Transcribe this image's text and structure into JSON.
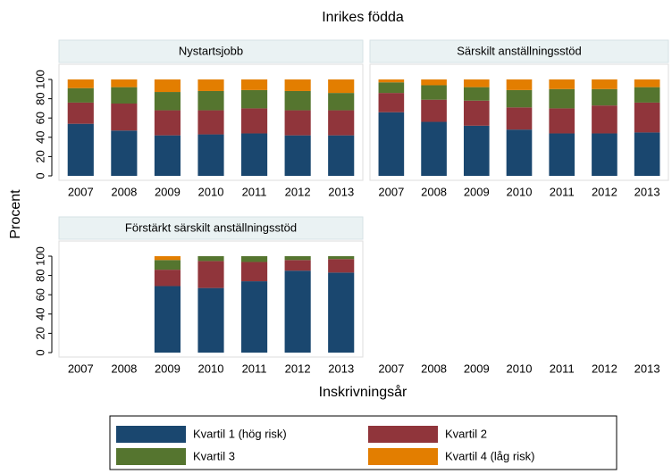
{
  "figure": {
    "title": "Inrikes födda",
    "x_label": "Inskrivningsår",
    "y_label": "Procent"
  },
  "chart_data": [
    {
      "type": "bar",
      "stacked": true,
      "title": "Nystartsjobb",
      "categories": [
        "2007",
        "2008",
        "2009",
        "2010",
        "2011",
        "2012",
        "2013"
      ],
      "ylim": [
        0,
        100
      ],
      "yticks": [
        0,
        20,
        40,
        60,
        80,
        100
      ],
      "series": [
        {
          "name": "Kvartil 1 (hög risk)",
          "color": "#1a476f",
          "values": [
            54,
            47,
            42,
            43,
            44,
            42,
            42
          ]
        },
        {
          "name": "Kvartil 2",
          "color": "#90353b",
          "values": [
            22,
            28,
            26,
            25,
            26,
            26,
            26
          ]
        },
        {
          "name": "Kvartil 3",
          "color": "#55752f",
          "values": [
            15,
            17,
            19,
            20,
            19,
            20,
            18
          ]
        },
        {
          "name": "Kvartil 4 (låg risk)",
          "color": "#e37e00",
          "values": [
            9,
            8,
            13,
            12,
            11,
            12,
            14
          ]
        }
      ]
    },
    {
      "type": "bar",
      "stacked": true,
      "title": "Särskilt anställningsstöd",
      "categories": [
        "2007",
        "2008",
        "2009",
        "2010",
        "2011",
        "2012",
        "2013"
      ],
      "ylim": [
        0,
        100
      ],
      "series": [
        {
          "name": "Kvartil 1 (hög risk)",
          "color": "#1a476f",
          "values": [
            66,
            56,
            52,
            48,
            44,
            44,
            45
          ]
        },
        {
          "name": "Kvartil 2",
          "color": "#90353b",
          "values": [
            20,
            23,
            26,
            23,
            26,
            29,
            31
          ]
        },
        {
          "name": "Kvartil 3",
          "color": "#55752f",
          "values": [
            11,
            15,
            14,
            18,
            20,
            17,
            16
          ]
        },
        {
          "name": "Kvartil 4 (låg risk)",
          "color": "#e37e00",
          "values": [
            3,
            6,
            8,
            11,
            10,
            10,
            8
          ]
        }
      ]
    },
    {
      "type": "bar",
      "stacked": true,
      "title": "Förstärkt särskilt anställningsstöd",
      "categories": [
        "2007",
        "2008",
        "2009",
        "2010",
        "2011",
        "2012",
        "2013"
      ],
      "ylim": [
        0,
        100
      ],
      "yticks": [
        0,
        20,
        40,
        60,
        80,
        100
      ],
      "series": [
        {
          "name": "Kvartil 1 (hög risk)",
          "color": "#1a476f",
          "values": [
            null,
            null,
            69,
            67,
            74,
            85,
            83
          ]
        },
        {
          "name": "Kvartil 2",
          "color": "#90353b",
          "values": [
            null,
            null,
            17,
            28,
            20,
            11,
            14
          ]
        },
        {
          "name": "Kvartil 3",
          "color": "#55752f",
          "values": [
            null,
            null,
            10,
            5,
            6,
            4,
            3
          ]
        },
        {
          "name": "Kvartil 4 (låg risk)",
          "color": "#e37e00",
          "values": [
            null,
            null,
            4,
            0,
            0,
            0,
            0
          ]
        }
      ]
    },
    {
      "type": "bar",
      "categories": [
        "2007",
        "2008",
        "2009",
        "2010",
        "2011",
        "2012",
        "2013"
      ]
    }
  ]
}
